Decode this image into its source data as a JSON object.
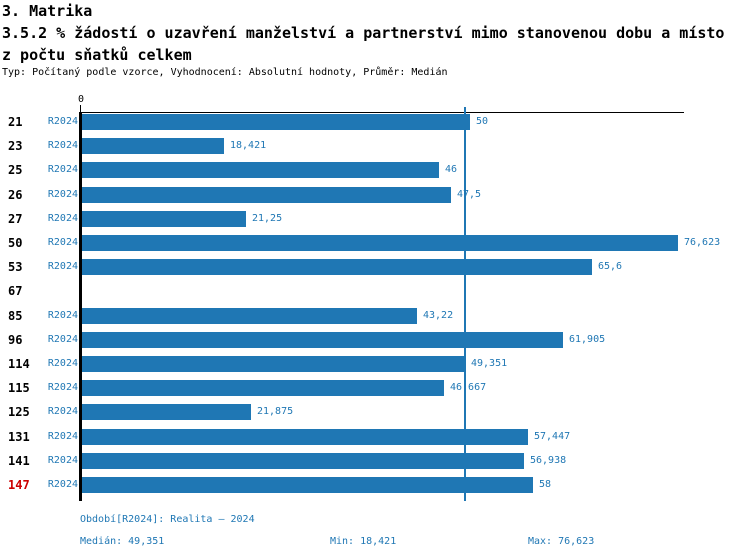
{
  "header": {
    "title": "3. Matrika",
    "indicator_line1": "3.5.2 % žádostí o uzavření manželství a partnerství mimo stanovenou dobu a místo",
    "indicator_line2": "z počtu sňatků celkem",
    "meta": "Typ: Počítaný podle vzorce, Vyhodnocení: Absolutní hodnoty, Průměr: Medián"
  },
  "chart_data": {
    "type": "bar",
    "orientation": "horizontal",
    "axis_zero_label": "0",
    "series_label": "R2024",
    "categories": [
      "21",
      "23",
      "25",
      "26",
      "27",
      "50",
      "53",
      "67",
      "85",
      "96",
      "114",
      "115",
      "125",
      "131",
      "141",
      "147"
    ],
    "values": [
      50,
      18.421,
      46,
      47.5,
      21.25,
      76.623,
      65.6,
      null,
      43.22,
      61.905,
      49.351,
      46.667,
      21.875,
      57.447,
      56.938,
      58
    ],
    "value_labels": [
      "50",
      "18,421",
      "46",
      "47,5",
      "21,25",
      "76,623",
      "65,6",
      "",
      "43,22",
      "61,905",
      "49,351",
      "46,667",
      "21,875",
      "57,447",
      "56,938",
      "58"
    ],
    "highlighted_category": "147",
    "median_value": 49.351,
    "xlim": [
      0,
      76.623
    ],
    "grid": false,
    "legend": "none",
    "bar_color": "#1f77b4",
    "text_blue_color": "#1f77b4",
    "highlight_color": "#cc0000",
    "axis_color": "#000000"
  },
  "footer": {
    "period": "Období[R2024]: Realita – 2024",
    "median": "Medián: 49,351",
    "min": "Min: 18,421",
    "max": "Max: 76,623"
  }
}
